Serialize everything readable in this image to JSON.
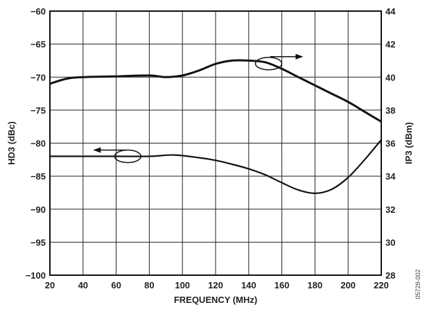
{
  "chart_data": {
    "type": "line",
    "xlabel": "FREQUENCY (MHz)",
    "ylabel_left": "HD3 (dBc)",
    "ylabel_right": "IP3 (dBm)",
    "figure_id": "05728-002",
    "xlim": [
      20,
      220
    ],
    "ylim_left": [
      -100,
      -60
    ],
    "ylim_right": [
      28,
      44
    ],
    "x_ticks": [
      20,
      40,
      60,
      80,
      100,
      120,
      140,
      160,
      180,
      200,
      220
    ],
    "y_ticks_left": [
      "−60",
      "−65",
      "−70",
      "−75",
      "−80",
      "−85",
      "−90",
      "−95",
      "−100"
    ],
    "y_tick_values_left": [
      -60,
      -65,
      -70,
      -75,
      -80,
      -85,
      -90,
      -95,
      -100
    ],
    "y_ticks_right": [
      "44",
      "42",
      "40",
      "38",
      "36",
      "34",
      "32",
      "30",
      "28"
    ],
    "y_tick_values_right": [
      44,
      42,
      40,
      38,
      36,
      34,
      32,
      30,
      28
    ],
    "grid": true,
    "series": [
      {
        "axis": "right",
        "color": "#111111",
        "x": [
          20,
          30,
          40,
          60,
          80,
          90,
          100,
          110,
          120,
          130,
          140,
          150,
          160,
          170,
          180,
          190,
          200,
          210,
          220
        ],
        "y": [
          39.6,
          39.9,
          40.0,
          40.05,
          40.1,
          40.0,
          40.1,
          40.4,
          40.8,
          41.0,
          41.0,
          40.9,
          40.5,
          40.0,
          39.5,
          39.0,
          38.5,
          37.9,
          37.3
        ]
      },
      {
        "axis": "left",
        "color": "#111111",
        "x": [
          20,
          40,
          60,
          80,
          95,
          110,
          120,
          130,
          140,
          150,
          160,
          170,
          180,
          190,
          200,
          210,
          220
        ],
        "y": [
          -82,
          -82,
          -82,
          -82,
          -81.8,
          -82.2,
          -82.6,
          -83.2,
          -83.9,
          -84.8,
          -86.0,
          -87.1,
          -87.6,
          -87.0,
          -85.2,
          -82.5,
          -79.5
        ]
      }
    ],
    "annotations": [
      {
        "type": "ellipse-arrow",
        "target_axis": "right",
        "series_index": 0,
        "x": 152,
        "arrow": "right"
      },
      {
        "type": "ellipse-arrow",
        "target_axis": "left",
        "series_index": 1,
        "x": 67,
        "arrow": "left"
      }
    ]
  }
}
